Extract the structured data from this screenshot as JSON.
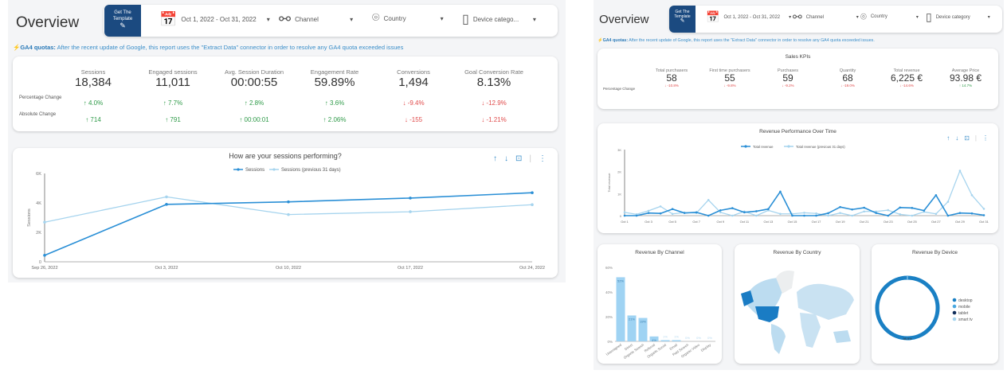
{
  "left": {
    "title": "Overview",
    "template_button": [
      "Get The",
      "Template"
    ],
    "filters": {
      "date": "Oct 1, 2022 - Oct 31, 2022",
      "channel": "Channel",
      "country": "Country",
      "device": "Device catego..."
    },
    "quota": {
      "label": "GA4 quotas:",
      "text": " After the recent update of Google, this report uses the \"Extract Data\" connector in order to resolve any GA4 quota exceeded issues"
    },
    "row_labels": [
      "Percentage Change",
      "Absolute Change"
    ],
    "kpis": [
      {
        "label": "Sessions",
        "value": "18,384",
        "pct": "4.0%",
        "abs": "714",
        "dir": "up"
      },
      {
        "label": "Engaged sessions",
        "value": "11,011",
        "pct": "7.7%",
        "abs": "791",
        "dir": "up"
      },
      {
        "label": "Avg. Session Duration",
        "value": "00:00:55",
        "pct": "2.8%",
        "abs": "00:00:01",
        "dir": "up"
      },
      {
        "label": "Engagement Rate",
        "value": "59.89%",
        "pct": "3.6%",
        "abs": "2.06%",
        "dir": "up"
      },
      {
        "label": "Conversions",
        "value": "1,494",
        "pct": "-9.4%",
        "abs": "-155",
        "dir": "down"
      },
      {
        "label": "Goal Conversion Rate",
        "value": "8.13%",
        "pct": "-12.9%",
        "abs": "-1.21%",
        "dir": "down"
      }
    ]
  },
  "right": {
    "title": "Overview",
    "template_button": [
      "Get The",
      "Template"
    ],
    "filters": {
      "date": "Oct 1, 2022 - Oct 31, 2022",
      "channel": "Channel",
      "country": "Country",
      "device": "Device category"
    },
    "quota": {
      "label": "GA4 quotas:",
      "text": " After the recent update of Google, this report uses the \"Extract Data\" connector in order to resolve any GA4 quota exceeded issues."
    },
    "kpi_title": "Sales KPIs",
    "row_label": "Percentage Change",
    "kpis": [
      {
        "label": "Total purchasers",
        "value": "58",
        "pct": "-10.8%",
        "dir": "down"
      },
      {
        "label": "First time purchasers",
        "value": "55",
        "pct": "-9.8%",
        "dir": "down"
      },
      {
        "label": "Purchases",
        "value": "59",
        "pct": "-9.2%",
        "dir": "down"
      },
      {
        "label": "Quantity",
        "value": "68",
        "pct": "-19.0%",
        "dir": "down"
      },
      {
        "label": "Total revenue",
        "value": "6,225 €",
        "pct": "-14.6%",
        "dir": "down"
      },
      {
        "label": "Average Price",
        "value": "93.98 €",
        "pct": "14.7%",
        "dir": "up"
      }
    ],
    "map_title": "Revenue By Country"
  },
  "colors": {
    "primary": "#2a8fd6",
    "secondary": "#a6d4ee",
    "navy": "#1b4a80",
    "up": "#2e9a48",
    "down": "#e04b4b",
    "bar": "#9fd3f3",
    "donut": "#1a80c4"
  },
  "chart_data": [
    {
      "type": "line",
      "title": "How are your sessions performing?",
      "ylabel": "Sessions",
      "ylim": [
        0,
        6000
      ],
      "yticks": [
        "0",
        "2K",
        "4K",
        "6K"
      ],
      "x": [
        "Sep 26, 2022",
        "Oct 3, 2022",
        "Oct 10, 2022",
        "Oct 17, 2022",
        "Oct 24, 2022"
      ],
      "series": [
        {
          "name": "Sessions",
          "values": [
            440,
            3900,
            4070,
            4330,
            4690
          ]
        },
        {
          "name": "Sessions (previous 31 days)",
          "values": [
            2690,
            4410,
            3210,
            3400,
            3880
          ]
        }
      ]
    },
    {
      "type": "line",
      "title": "Revenue Performance Over Time",
      "ylabel": "Total revenue",
      "ylim": [
        0,
        3000
      ],
      "yticks": [
        "0",
        "1K",
        "2K",
        "3K"
      ],
      "x": [
        "Oct 1",
        "Oct 2",
        "Oct 3",
        "Oct 4",
        "Oct 5",
        "Oct 6",
        "Oct 7",
        "Oct 8",
        "Oct 9",
        "Oct 10",
        "Oct 11",
        "Oct 12",
        "Oct 13",
        "Oct 14",
        "Oct 15",
        "Oct 16",
        "Oct 17",
        "Oct 18",
        "Oct 19",
        "Oct 20",
        "Oct 21",
        "Oct 22",
        "Oct 23",
        "Oct 24",
        "Oct 25",
        "Oct 26",
        "Oct 27",
        "Oct 28",
        "Oct 29",
        "Oct 30",
        "Oct 31"
      ],
      "series": [
        {
          "name": "Total revenue",
          "values": [
            0,
            0,
            120,
            100,
            300,
            120,
            150,
            0,
            240,
            340,
            150,
            200,
            300,
            1090,
            0,
            0,
            0,
            110,
            390,
            280,
            360,
            120,
            0,
            370,
            350,
            230,
            930,
            0,
            120,
            100,
            20
          ]
        },
        {
          "name": "Total revenue (previous 31 days)",
          "values": [
            150,
            60,
            220,
            420,
            80,
            140,
            120,
            710,
            150,
            0,
            190,
            0,
            240,
            80,
            80,
            130,
            100,
            0,
            120,
            0,
            190,
            190,
            250,
            60,
            0,
            170,
            80,
            630,
            2040,
            930,
            310
          ]
        }
      ]
    },
    {
      "type": "bar",
      "title": "Revenue By Channel",
      "ylim": [
        0,
        60
      ],
      "yticks": [
        "0%",
        "20%",
        "40%",
        "60%"
      ],
      "categories": [
        "Unassigned",
        "Direct",
        "Organic Search",
        "Referral",
        "Organic Social",
        "Email",
        "Paid Search",
        "Organic Video",
        "Display"
      ],
      "values": [
        52,
        21,
        19,
        4,
        1,
        1,
        0,
        0,
        0
      ],
      "labels": [
        "52%",
        "21%",
        "19%",
        "4%",
        "1%",
        "1%",
        "0%",
        "0%",
        "0%"
      ]
    },
    {
      "type": "pie",
      "title": "Revenue By Device",
      "categories": [
        "desktop",
        "mobile",
        "tablet",
        "smart tv"
      ],
      "values": [
        98.9,
        0.8,
        0.2,
        0.1
      ],
      "data_label": "98.9%",
      "legend_colors": [
        "#1a80c4",
        "#4aa8e0",
        "#0f2d5a",
        "#a6d4ee"
      ]
    }
  ]
}
